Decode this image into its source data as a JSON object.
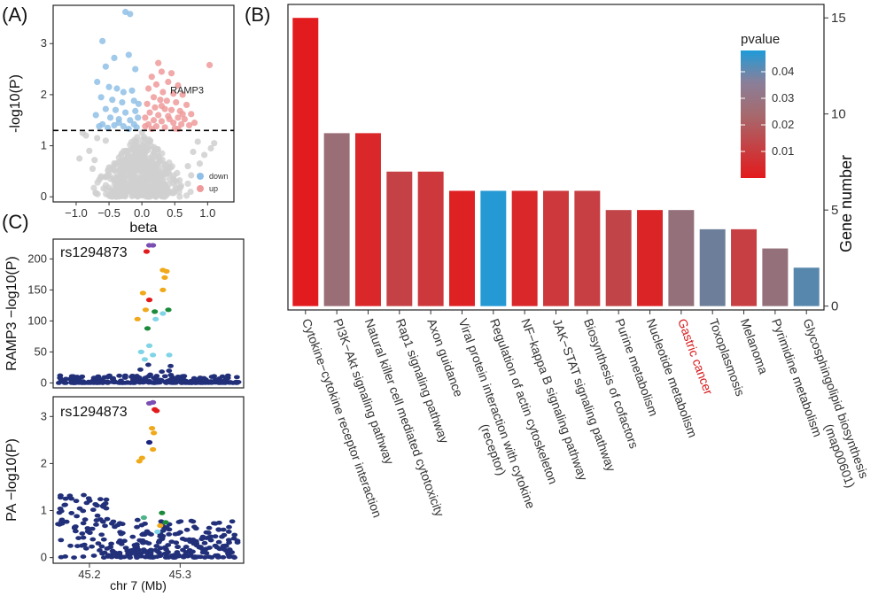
{
  "panel_labels": [
    "(A)",
    "(B)",
    "(C)"
  ],
  "chart_data": [
    {
      "type": "scatter",
      "panel": "(A)",
      "xlabel": "beta",
      "ylabel": "-log10(P)",
      "xlim": [
        -1.35,
        1.4
      ],
      "ylim": [
        -0.1,
        3.75
      ],
      "xticks": [
        -1.0,
        -0.5,
        0.0,
        0.5,
        1.0
      ],
      "xtick_labels": [
        "−1.0",
        "−0.5",
        "0.0",
        "0.5",
        "1.0"
      ],
      "yticks": [
        0,
        1,
        2,
        3
      ],
      "threshold": 1.3,
      "annotation": {
        "text": "RAMP3",
        "x": 0.7,
        "y": 1.85
      },
      "legend": {
        "position": "bottom-right",
        "entries": [
          {
            "label": "down",
            "color": "#8fbfe6"
          },
          {
            "label": "up",
            "color": "#ef9a9a"
          }
        ]
      },
      "series": [
        {
          "name": "down",
          "color": "#8fbfe6",
          "points": [
            [
              -0.25,
              3.62
            ],
            [
              -0.18,
              3.58
            ],
            [
              -0.6,
              3.05
            ],
            [
              -0.42,
              2.72
            ],
            [
              -0.55,
              2.55
            ],
            [
              -0.2,
              2.78
            ],
            [
              -0.1,
              2.5
            ],
            [
              -0.68,
              2.25
            ],
            [
              -0.5,
              2.15
            ],
            [
              -0.38,
              2.12
            ],
            [
              -0.28,
              2.05
            ],
            [
              -0.15,
              2.08
            ],
            [
              -0.62,
              1.95
            ],
            [
              -0.45,
              1.9
            ],
            [
              -0.3,
              1.85
            ],
            [
              -0.12,
              1.88
            ],
            [
              -0.05,
              1.82
            ],
            [
              -0.55,
              1.72
            ],
            [
              -0.4,
              1.7
            ],
            [
              -0.25,
              1.65
            ],
            [
              -0.1,
              1.68
            ],
            [
              -0.7,
              1.6
            ],
            [
              -0.48,
              1.55
            ],
            [
              -0.35,
              1.52
            ],
            [
              -0.18,
              1.5
            ],
            [
              -0.06,
              1.55
            ],
            [
              -0.6,
              1.42
            ],
            [
              -0.42,
              1.4
            ],
            [
              -0.28,
              1.38
            ],
            [
              -0.12,
              1.42
            ],
            [
              -0.52,
              1.35
            ],
            [
              -0.2,
              1.33
            ],
            [
              -0.35,
              1.45
            ],
            [
              -0.08,
              1.36
            ],
            [
              -0.65,
              1.38
            ]
          ]
        },
        {
          "name": "up",
          "color": "#ef9a9a",
          "points": [
            [
              0.25,
              2.62
            ],
            [
              1.03,
              2.58
            ],
            [
              0.3,
              2.45
            ],
            [
              0.45,
              2.42
            ],
            [
              0.15,
              2.35
            ],
            [
              0.22,
              2.2
            ],
            [
              0.4,
              2.25
            ],
            [
              0.55,
              2.18
            ],
            [
              0.1,
              2.12
            ],
            [
              0.32,
              2.05
            ],
            [
              0.48,
              2.02
            ],
            [
              0.62,
              2.0
            ],
            [
              0.18,
              1.95
            ],
            [
              0.28,
              1.9
            ],
            [
              0.38,
              1.88
            ],
            [
              0.52,
              1.85
            ],
            [
              0.68,
              1.8
            ],
            [
              0.08,
              1.82
            ],
            [
              0.2,
              1.75
            ],
            [
              0.35,
              1.72
            ],
            [
              0.45,
              1.7
            ],
            [
              0.58,
              1.68
            ],
            [
              0.75,
              1.62
            ],
            [
              0.12,
              1.65
            ],
            [
              0.25,
              1.6
            ],
            [
              0.4,
              1.58
            ],
            [
              0.55,
              1.55
            ],
            [
              0.65,
              1.52
            ],
            [
              0.05,
              1.55
            ],
            [
              0.18,
              1.5
            ],
            [
              0.3,
              1.48
            ],
            [
              0.48,
              1.45
            ],
            [
              0.6,
              1.42
            ],
            [
              0.72,
              1.4
            ],
            [
              0.1,
              1.42
            ],
            [
              0.22,
              1.38
            ],
            [
              0.35,
              1.36
            ],
            [
              0.5,
              1.34
            ],
            [
              0.8,
              1.45
            ],
            [
              0.15,
              1.33
            ],
            [
              0.42,
              1.52
            ],
            [
              0.62,
              1.62
            ],
            [
              0.3,
              1.78
            ],
            [
              0.05,
              1.38
            ],
            [
              0.55,
              1.33
            ]
          ]
        },
        {
          "name": "",
          "color": "#cfcfcf",
          "points": [
            [
              -0.68,
              1.15
            ],
            [
              -0.85,
              1.2
            ],
            [
              -0.55,
              1.1
            ],
            [
              1.05,
              0.95
            ],
            [
              1.1,
              1.05
            ],
            [
              0.85,
              1.08
            ],
            [
              0.78,
              0.88
            ],
            [
              -0.72,
              0.72
            ],
            [
              -0.8,
              0.9
            ],
            [
              0.95,
              0.82
            ],
            [
              -0.9,
              1.25
            ],
            [
              -0.95,
              0.75
            ],
            [
              -0.75,
              0.55
            ],
            [
              0.7,
              0.6
            ],
            [
              0.88,
              0.65
            ],
            [
              -0.62,
              0.4
            ],
            [
              0.75,
              0.42
            ]
          ]
        }
      ]
    },
    {
      "type": "bar",
      "panel": "(B)",
      "ylabel": "Gene number",
      "ylim": [
        -0.2,
        15.7
      ],
      "yticks": [
        0,
        5,
        10,
        15
      ],
      "y_axis_side": "right",
      "categories": [
        "Cytokine−cytokine receptor interaction",
        "PI3K−Akt signaling pathway",
        "Natural killer cell mediated cytotoxicity",
        "Rap1 signaling pathway",
        "Axon guidance",
        "Viral protein interaction with cytokine|(receptor)",
        "Regulation of actin cytoskeleton",
        "NF−kappa B signaling pathway",
        "JAK−STAT signaling pathway",
        "Biosynthesis of cofactors",
        "Purine metabolism",
        "Nucleotide metabolism",
        "Gastric cancer",
        "Toxoplasmosis",
        "Melanoma",
        "Pyrimidine metabolism",
        "Glycosphingolipid biosynthesis|(map00601)"
      ],
      "highlight_category": "Gastric cancer",
      "highlight_color": "#d7191c",
      "values": [
        15,
        9,
        9,
        7,
        7,
        6,
        6,
        6,
        6,
        6,
        5,
        5,
        5,
        4,
        4,
        3,
        2
      ],
      "pvalues": [
        0.0005,
        0.026,
        0.004,
        0.012,
        0.009,
        0.002,
        0.047,
        0.004,
        0.009,
        0.011,
        0.013,
        0.003,
        0.027,
        0.034,
        0.011,
        0.027,
        0.038
      ],
      "colorbar": {
        "title": "pvalue",
        "ticks": [
          0.01,
          0.02,
          0.03,
          0.04
        ],
        "tick_labels": [
          "0.01",
          "0.02",
          "0.03",
          "0.04"
        ],
        "range": [
          0.0,
          0.048
        ],
        "low_color": "#e31a1c",
        "high_color": "#1f9bd8"
      }
    },
    {
      "type": "scatter",
      "panel": "(C)",
      "xlabel": "chr 7 (Mb)",
      "xlim": [
        45.16,
        45.37
      ],
      "xticks": [
        45.2,
        45.3
      ],
      "xtick_labels": [
        "45.2",
        "45.3"
      ],
      "subplots": [
        {
          "ylabel": "RAMP3  −log10(P)",
          "snp_label": "rs1294873",
          "ylim": [
            -8,
            232
          ],
          "yticks": [
            0,
            50,
            100,
            150,
            200
          ],
          "highlight": [
            {
              "x": 45.266,
              "y": 222,
              "color": "#7a4fb3"
            },
            {
              "x": 45.27,
              "y": 222,
              "color": "#7a4fb3"
            },
            {
              "x": 45.263,
              "y": 212,
              "color": "#e31a1c"
            },
            {
              "x": 45.281,
              "y": 182,
              "color": "#f0a91b"
            },
            {
              "x": 45.285,
              "y": 180,
              "color": "#f0a91b"
            },
            {
              "x": 45.283,
              "y": 170,
              "color": "#f0a91b"
            },
            {
              "x": 45.259,
              "y": 145,
              "color": "#f0a91b"
            },
            {
              "x": 45.281,
              "y": 150,
              "color": "#f0a91b"
            },
            {
              "x": 45.262,
              "y": 118,
              "color": "#f0a91b"
            },
            {
              "x": 45.266,
              "y": 134,
              "color": "#e31a1c"
            },
            {
              "x": 45.272,
              "y": 115,
              "color": "#1b8a3a"
            },
            {
              "x": 45.287,
              "y": 118,
              "color": "#1b8a3a"
            },
            {
              "x": 45.253,
              "y": 103,
              "color": "#f0a91b"
            },
            {
              "x": 45.264,
              "y": 88,
              "color": "#1b8a3a"
            },
            {
              "x": 45.273,
              "y": 103,
              "color": "#7fd4e6"
            },
            {
              "x": 45.281,
              "y": 112,
              "color": "#7fd4e6"
            },
            {
              "x": 45.266,
              "y": 60,
              "color": "#7fd4e6"
            },
            {
              "x": 45.257,
              "y": 50,
              "color": "#7fd4e6"
            },
            {
              "x": 45.27,
              "y": 45,
              "color": "#7fd4e6"
            },
            {
              "x": 45.288,
              "y": 45,
              "color": "#7fd4e6"
            },
            {
              "x": 45.261,
              "y": 38,
              "color": "#7fd4e6"
            }
          ]
        },
        {
          "ylabel": "PA  −log10(P)",
          "snp_label": "rs1294873",
          "ylim": [
            -0.12,
            3.42
          ],
          "yticks": [
            0,
            1,
            2,
            3
          ],
          "highlight": [
            {
              "x": 45.27,
              "y": 3.3,
              "color": "#7a4fb3"
            },
            {
              "x": 45.266,
              "y": 3.28,
              "color": "#7a4fb3"
            },
            {
              "x": 45.272,
              "y": 3.15,
              "color": "#e31a1c"
            },
            {
              "x": 45.274,
              "y": 3.12,
              "color": "#e31a1c"
            },
            {
              "x": 45.269,
              "y": 2.75,
              "color": "#f0a91b"
            },
            {
              "x": 45.271,
              "y": 2.65,
              "color": "#f0a91b"
            },
            {
              "x": 45.266,
              "y": 2.45,
              "color": "#1a237e"
            },
            {
              "x": 45.27,
              "y": 2.3,
              "color": "#f0a91b"
            },
            {
              "x": 45.255,
              "y": 2.05,
              "color": "#f0a91b"
            },
            {
              "x": 45.258,
              "y": 2.12,
              "color": "#f0a91b"
            },
            {
              "x": 45.28,
              "y": 0.95,
              "color": "#1b8a3a"
            },
            {
              "x": 45.26,
              "y": 0.85,
              "color": "#4fb38a"
            },
            {
              "x": 45.284,
              "y": 0.75,
              "color": "#1b8a3a"
            },
            {
              "x": 45.278,
              "y": 0.68,
              "color": "#f0a91b"
            },
            {
              "x": 45.275,
              "y": 0.55,
              "color": "#7fd4e6"
            }
          ]
        }
      ]
    }
  ]
}
